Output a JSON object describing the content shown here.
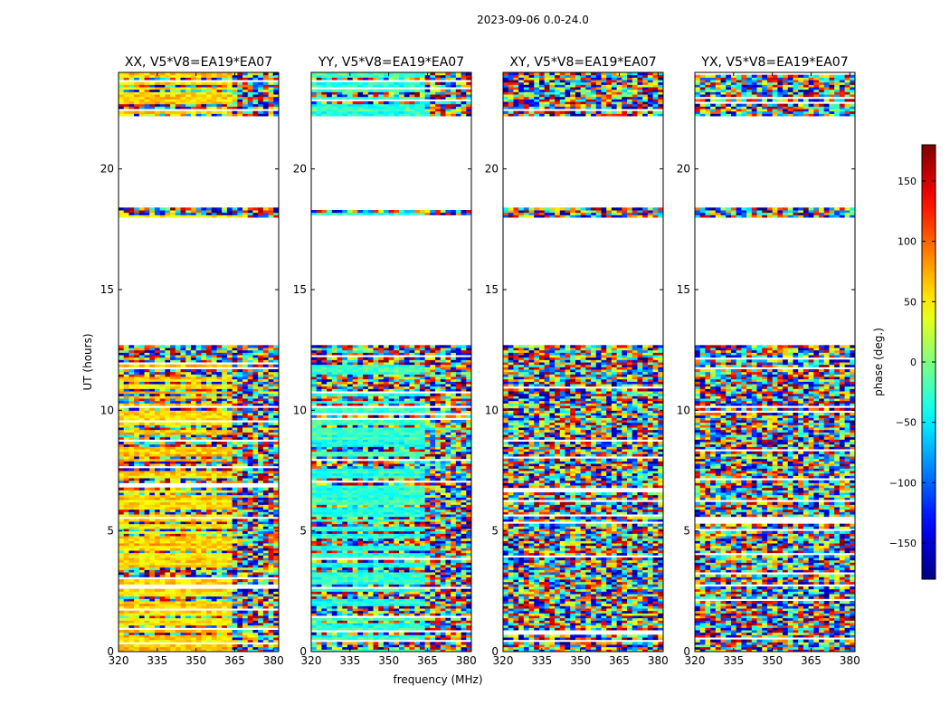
{
  "figure": {
    "suptitle": "2023-09-06 0.0-24.0",
    "xlabel": "frequency (MHz)",
    "ylabel": "UT (hours)"
  },
  "chart_data": [
    {
      "type": "heatmap",
      "title": "XX, V5*V8=EA19*EA07",
      "polarization": "XX",
      "xlim": [
        320,
        382
      ],
      "ylim": [
        0,
        24
      ],
      "xticks": [
        320,
        335,
        350,
        365,
        380
      ],
      "yticks": [
        0,
        5,
        10,
        15,
        20
      ],
      "empty_ut_ranges": [
        [
          12.7,
          18.0
        ],
        [
          18.4,
          22.2
        ]
      ]
    },
    {
      "type": "heatmap",
      "title": "YY, V5*V8=EA19*EA07",
      "polarization": "YY",
      "xlim": [
        320,
        382
      ],
      "ylim": [
        0,
        24
      ],
      "xticks": [
        320,
        335,
        350,
        365,
        380
      ],
      "yticks": [
        0,
        5,
        10,
        15,
        20
      ],
      "empty_ut_ranges": [
        [
          12.7,
          18.0
        ],
        [
          18.4,
          22.2
        ]
      ]
    },
    {
      "type": "heatmap",
      "title": "XY, V5*V8=EA19*EA07",
      "polarization": "XY",
      "xlim": [
        320,
        382
      ],
      "ylim": [
        0,
        24
      ],
      "xticks": [
        320,
        335,
        350,
        365,
        380
      ],
      "yticks": [
        0,
        5,
        10,
        15,
        20
      ],
      "empty_ut_ranges": [
        [
          12.7,
          18.0
        ],
        [
          18.4,
          22.2
        ]
      ]
    },
    {
      "type": "heatmap",
      "title": "YX, V5*V8=EA19*EA07",
      "polarization": "YX",
      "xlim": [
        320,
        382
      ],
      "ylim": [
        0,
        24
      ],
      "xticks": [
        320,
        335,
        350,
        365,
        380
      ],
      "yticks": [
        0,
        5,
        10,
        15,
        20
      ],
      "empty_ut_ranges": [
        [
          12.7,
          18.0
        ],
        [
          18.4,
          22.2
        ]
      ]
    }
  ],
  "colorbar": {
    "label": "phase (deg.)",
    "range": [
      -180,
      180
    ],
    "ticks": [
      150,
      100,
      50,
      0,
      -50,
      -100,
      -150
    ],
    "tick_labels": [
      "150",
      "100",
      "50",
      "0",
      "−50",
      "−100",
      "−150"
    ],
    "colormap": "jet"
  }
}
